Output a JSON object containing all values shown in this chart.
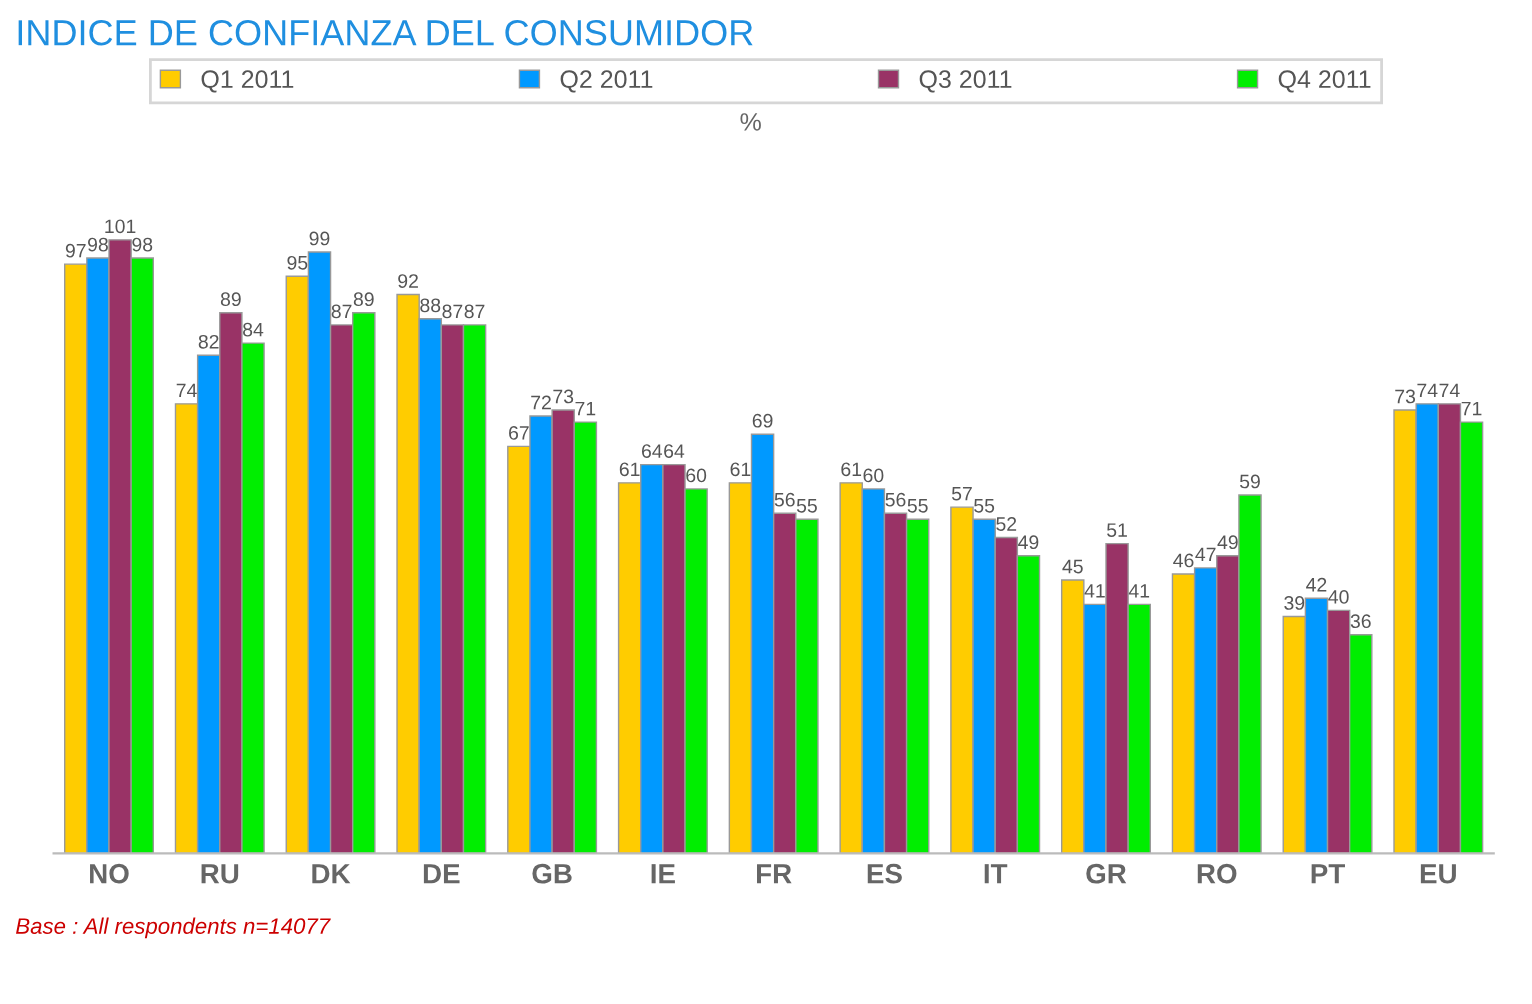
{
  "chart_data": {
    "type": "bar",
    "title": "INDICE DE CONFIANZA DEL CONSUMIDOR",
    "subtitle": "%",
    "categories": [
      "NO",
      "RU",
      "DK",
      "DE",
      "GB",
      "IE",
      "FR",
      "ES",
      "IT",
      "GR",
      "RO",
      "PT",
      "EU"
    ],
    "series": [
      {
        "name": "Q1 2011",
        "color": "#ffcc00",
        "values": [
          97,
          74,
          95,
          92,
          67,
          61,
          61,
          61,
          57,
          45,
          46,
          39,
          73
        ]
      },
      {
        "name": "Q2 2011",
        "color": "#0099ff",
        "values": [
          98,
          82,
          99,
          88,
          72,
          64,
          69,
          60,
          55,
          41,
          47,
          42,
          74
        ]
      },
      {
        "name": "Q3 2011",
        "color": "#993366",
        "values": [
          101,
          89,
          87,
          87,
          73,
          64,
          56,
          56,
          52,
          51,
          49,
          40,
          74
        ]
      },
      {
        "name": "Q4 2011",
        "color": "#00ee00",
        "values": [
          98,
          84,
          89,
          87,
          71,
          60,
          55,
          55,
          49,
          41,
          59,
          36,
          71
        ]
      }
    ],
    "data_labels": true,
    "legend": "top",
    "grid": false,
    "annotations": [
      "Base : All respondents n=14077"
    ]
  }
}
